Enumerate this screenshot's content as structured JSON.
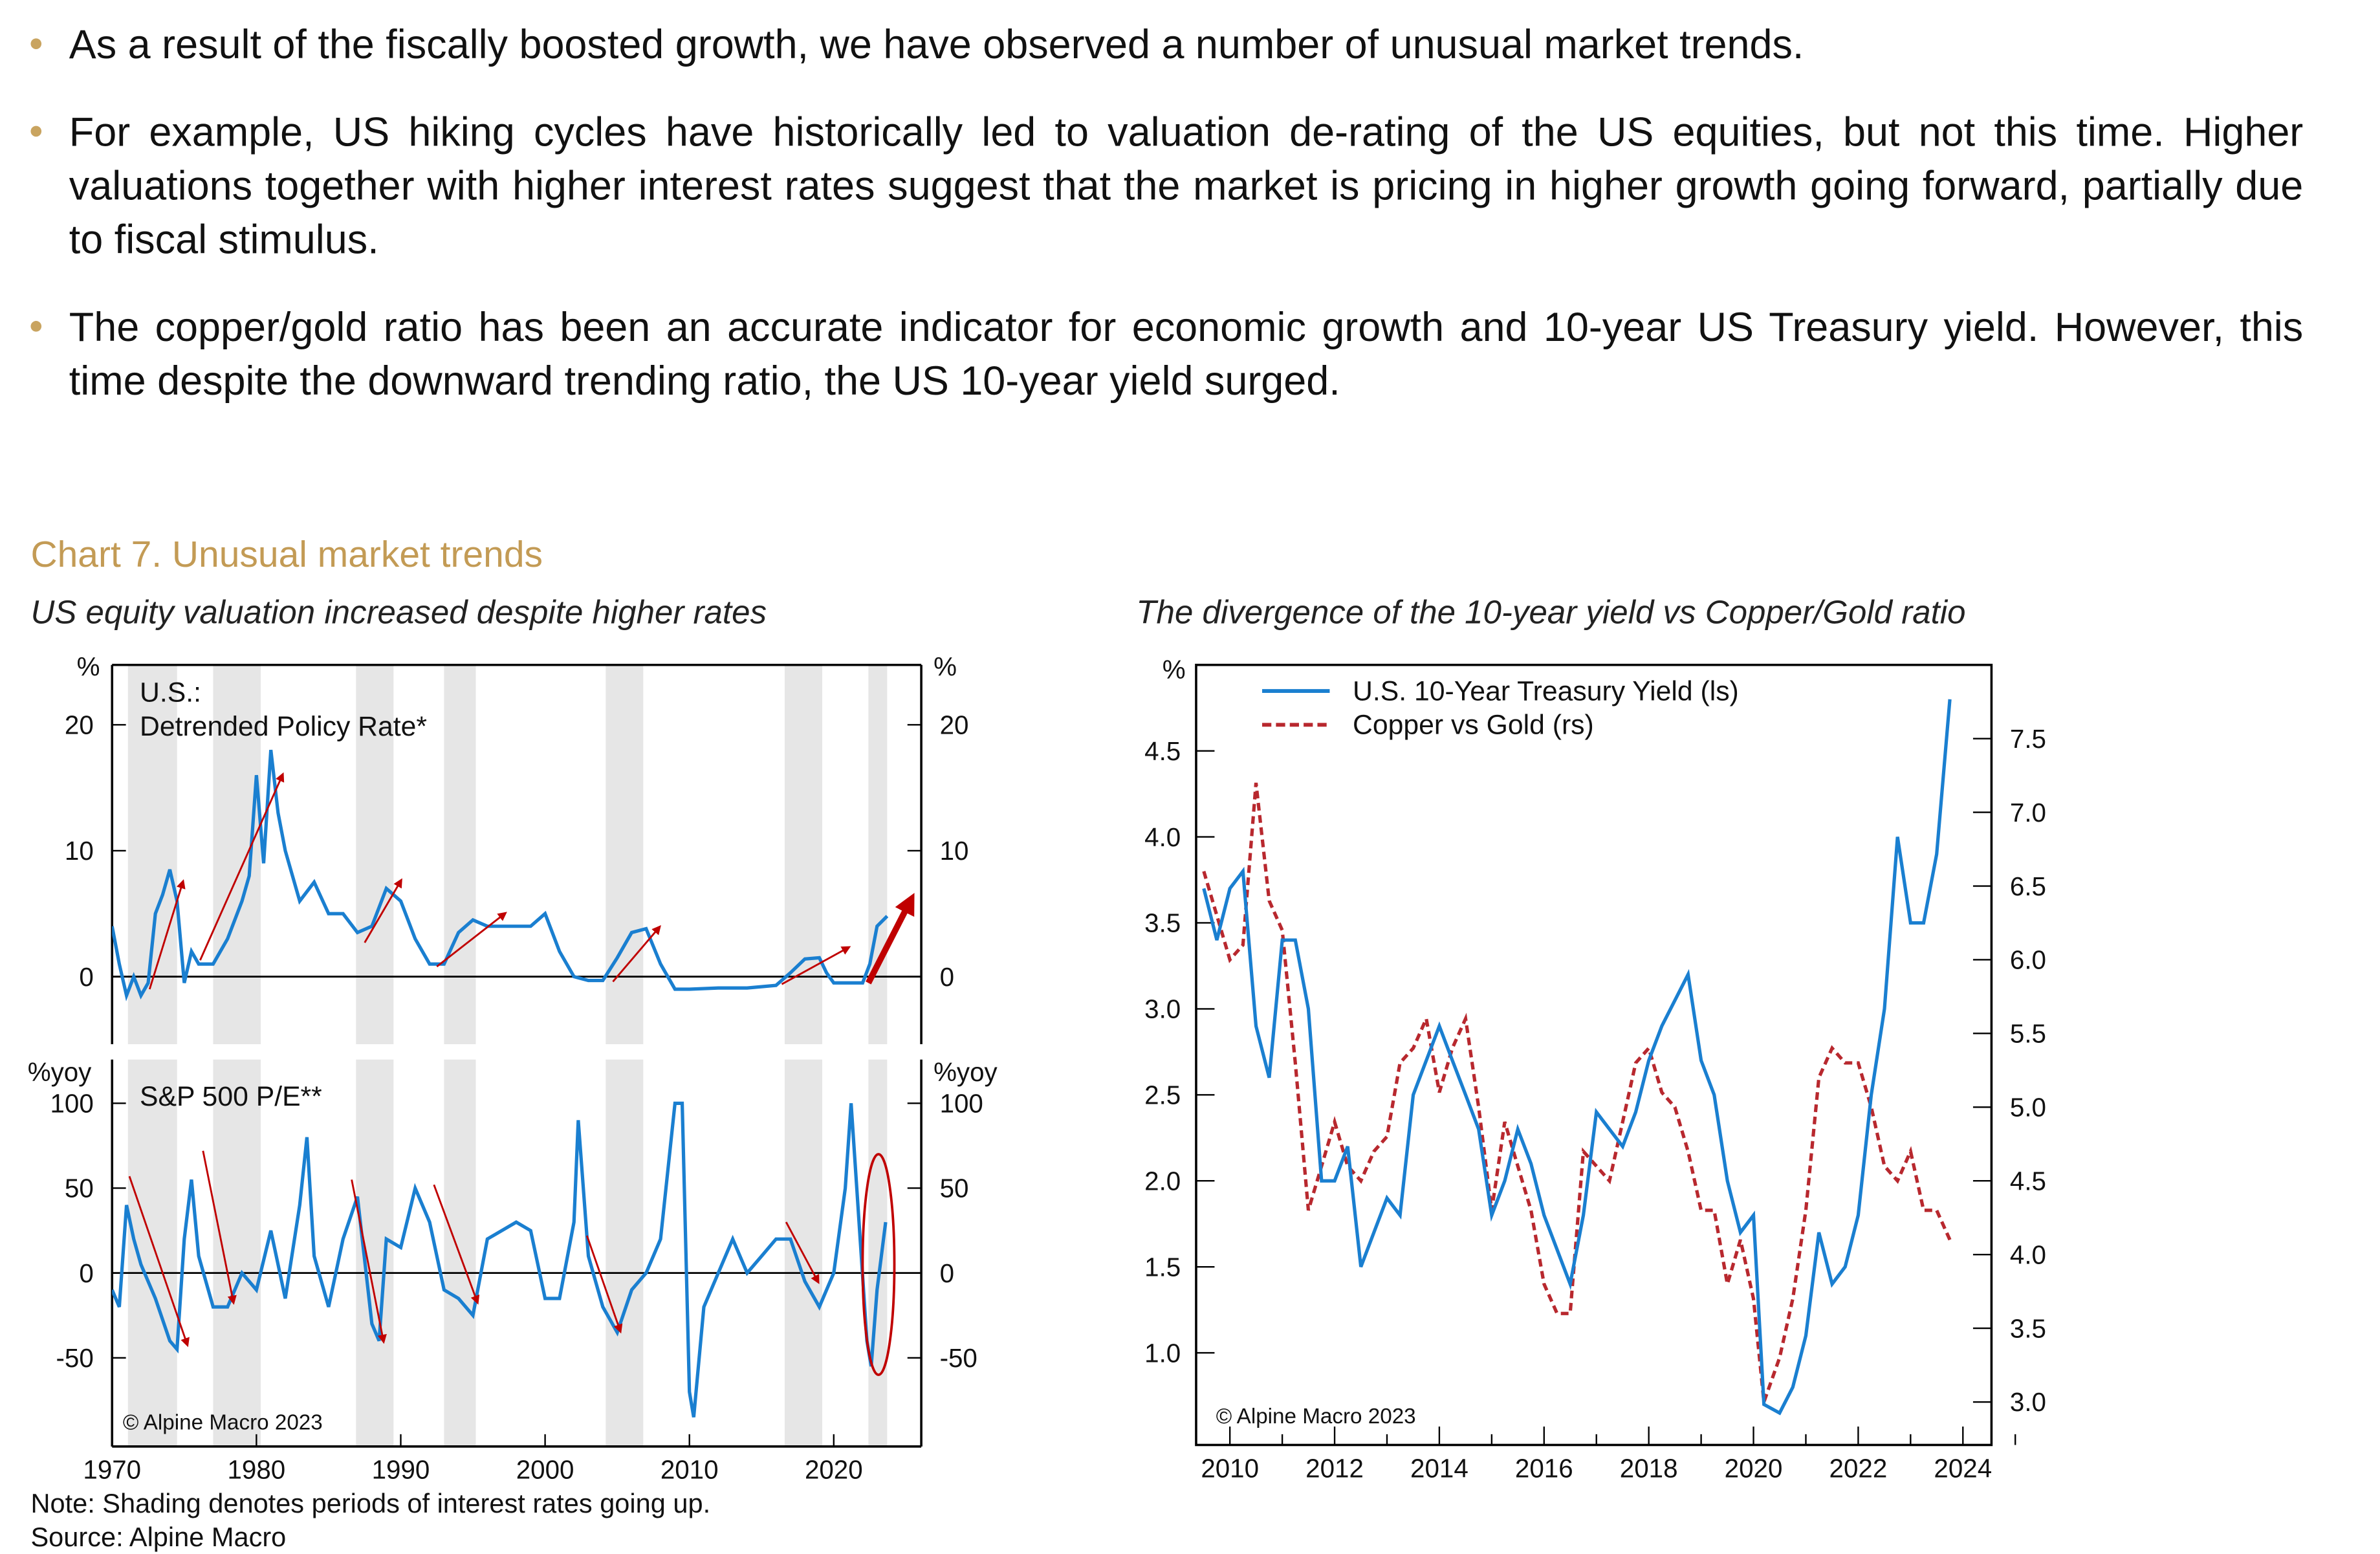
{
  "bullets": [
    "As a result of the fiscally boosted growth, we have observed a number of unusual market trends.",
    "For example, US hiking cycles have historically led to valuation de-rating of the US equities, but not this time. Higher valuations together with higher interest rates suggest that the market is pricing in higher growth going forward, partially due to fiscal stimulus.",
    "The copper/gold ratio has been an accurate indicator for economic growth and 10-year US Treasury yield. However, this time despite the downward trending ratio, the US 10-year yield surged."
  ],
  "chart_title": "Chart 7. Unusual market trends",
  "note": "Note: Shading denotes periods of interest rates going up.",
  "source": "Source: Alpine Macro",
  "colors": {
    "accent": "#c39b55",
    "blue_line": "#1a7fd0",
    "red": "#c00000",
    "dashed_red": "#b8282e",
    "shading": "#e6e6e6"
  },
  "chart_data": [
    {
      "type": "line",
      "subtitle": "US equity valuation increased despite higher rates",
      "copyright": "© Alpine Macro 2023",
      "x_ticks": [
        1970,
        1980,
        1990,
        2000,
        2010,
        2020
      ],
      "xlim": [
        1970,
        2026
      ],
      "shaded_periods": [
        [
          1971.1,
          1974.5
        ],
        [
          1977.0,
          1980.3
        ],
        [
          1986.9,
          1989.5
        ],
        [
          1993.0,
          1995.2
        ],
        [
          2004.2,
          2006.8
        ],
        [
          2016.6,
          2019.2
        ],
        [
          2022.4,
          2023.7
        ]
      ],
      "panels": [
        {
          "label_line1": "U.S.:",
          "label_line2": "Detrended Policy Rate*",
          "unit": "%",
          "y_ticks": [
            0,
            10,
            20
          ],
          "ylim": [
            -5.4,
            24.7
          ],
          "x": [
            1970,
            1970.5,
            1971,
            1971.5,
            1972,
            1972.5,
            1973,
            1973.5,
            1974,
            1974.5,
            1975,
            1975.5,
            1976,
            1977,
            1978,
            1979,
            1979.5,
            1980,
            1980.5,
            1981,
            1981.5,
            1982,
            1982.5,
            1983,
            1984,
            1985,
            1986,
            1987,
            1988,
            1989,
            1990,
            1991,
            1992,
            1993,
            1994,
            1995,
            1996,
            1997,
            1998,
            1999,
            2000,
            2001,
            2002,
            2003,
            2004,
            2005,
            2006,
            2007,
            2008,
            2009,
            2010,
            2012,
            2014,
            2016,
            2017,
            2018,
            2019,
            2019.5,
            2020,
            2021,
            2022,
            2022.5,
            2023,
            2023.7
          ],
          "values": [
            4,
            1,
            -1.5,
            0,
            -1.5,
            -0.5,
            5,
            6.5,
            8.5,
            6,
            -0.5,
            2,
            1,
            1,
            3,
            6,
            8,
            16,
            9,
            18,
            13,
            10,
            8,
            6,
            7.5,
            5,
            5,
            3.5,
            4,
            7,
            6,
            3,
            1,
            1,
            3.5,
            4.5,
            4,
            4,
            4,
            4,
            5,
            2,
            0,
            -0.3,
            -0.3,
            1.5,
            3.5,
            3.8,
            1,
            -1,
            -1,
            -0.9,
            -0.9,
            -0.7,
            0.3,
            1.4,
            1.5,
            0.3,
            -0.5,
            -0.5,
            -0.5,
            1,
            4,
            4.8
          ],
          "arrows": [
            [
              1972.6,
              -1,
              1974.9,
              7.5
            ],
            [
              1976.1,
              1.3,
              1981.8,
              16
            ],
            [
              1987.5,
              2.7,
              1990,
              7.6
            ],
            [
              1992.5,
              0.8,
              1997.2,
              5
            ],
            [
              2004.7,
              -0.4,
              2007.9,
              3.9
            ],
            [
              2016.4,
              -0.6,
              2021,
              2.3
            ],
            [
              2022.4,
              -0.5,
              2025.3,
              6
            ]
          ]
        },
        {
          "label_line1": "S&P 500 P/E**",
          "label_line2": "",
          "unit": "%yoy",
          "y_ticks": [
            -50,
            0,
            50,
            100
          ],
          "ylim": [
            -102,
            125
          ],
          "x": [
            1970,
            1970.5,
            1971,
            1971.5,
            1972,
            1973,
            1974,
            1974.5,
            1975,
            1975.5,
            1976,
            1977,
            1978,
            1979,
            1980,
            1981,
            1982,
            1983,
            1983.5,
            1984,
            1985,
            1986,
            1987,
            1988,
            1988.5,
            1989,
            1990,
            1991,
            1992,
            1993,
            1994,
            1995,
            1996,
            1997,
            1998,
            1999,
            2000,
            2001,
            2002,
            2002.3,
            2003,
            2004,
            2005,
            2006,
            2007,
            2008,
            2009,
            2009.5,
            2010,
            2010.3,
            2011,
            2012,
            2013,
            2014,
            2015,
            2016,
            2017,
            2018,
            2019,
            2020,
            2020.8,
            2021.2,
            2021.6,
            2022.3,
            2022.6,
            2023,
            2023.6
          ],
          "values": [
            -10,
            -20,
            40,
            20,
            5,
            -15,
            -40,
            -45,
            20,
            55,
            10,
            -20,
            -20,
            0,
            -10,
            25,
            -15,
            40,
            80,
            10,
            -20,
            20,
            45,
            -30,
            -40,
            20,
            15,
            50,
            30,
            -10,
            -15,
            -25,
            20,
            25,
            30,
            25,
            -15,
            -15,
            30,
            90,
            10,
            -20,
            -35,
            -10,
            0,
            20,
            100,
            100,
            -70,
            -85,
            -20,
            0,
            20,
            0,
            10,
            20,
            20,
            -5,
            -20,
            0,
            50,
            100,
            50,
            -40,
            -55,
            -10,
            30
          ],
          "arrows": [
            [
              1971.2,
              57,
              1975.2,
              -42
            ],
            [
              1976.3,
              72,
              1978.4,
              -17
            ],
            [
              1986.6,
              55,
              1988.8,
              -40
            ],
            [
              1992.3,
              52,
              1995.3,
              -17
            ],
            [
              2002.9,
              22,
              2005.2,
              -34
            ],
            [
              2016.7,
              30,
              2018.9,
              -5
            ]
          ],
          "highlight_ellipse": {
            "x": 2023.1,
            "y": 5,
            "rx_years": 1.1,
            "ry": 65
          }
        }
      ]
    },
    {
      "type": "line",
      "subtitle": "The divergence of the 10-year yield vs Copper/Gold ratio",
      "copyright": "© Alpine Macro 2023",
      "left_unit": "%",
      "x_ticks": [
        2010,
        2012,
        2014,
        2016,
        2018,
        2020,
        2022,
        2024
      ],
      "xlim": [
        2009.4,
        2024.5
      ],
      "left_ticks": [
        "1.0",
        "1.5",
        "2.0",
        "2.5",
        "3.0",
        "3.5",
        "4.0",
        "4.5"
      ],
      "left_ylim": [
        0.47,
        5.0
      ],
      "right_ticks": [
        "3.0",
        "3.5",
        "4.0",
        "4.5",
        "5.0",
        "5.5",
        "6.0",
        "6.5",
        "7.0",
        "7.5"
      ],
      "right_ylim": [
        2.71,
        8.0
      ],
      "legend_position": "top-left",
      "series": [
        {
          "name": "U.S. 10-Year Treasury Yield (ls)",
          "axis": "left",
          "style": "solid",
          "x": [
            2009.5,
            2009.75,
            2010,
            2010.25,
            2010.5,
            2010.75,
            2011,
            2011.25,
            2011.5,
            2011.75,
            2012,
            2012.25,
            2012.5,
            2012.75,
            2013,
            2013.25,
            2013.5,
            2013.75,
            2014,
            2014.25,
            2014.5,
            2014.75,
            2015,
            2015.25,
            2015.5,
            2015.75,
            2016,
            2016.5,
            2016.75,
            2017,
            2017.25,
            2017.5,
            2017.75,
            2018,
            2018.25,
            2018.75,
            2019,
            2019.25,
            2019.5,
            2019.75,
            2020,
            2020.2,
            2020.5,
            2020.75,
            2021,
            2021.25,
            2021.5,
            2021.75,
            2022,
            2022.25,
            2022.5,
            2022.75,
            2023,
            2023.25,
            2023.5,
            2023.75
          ],
          "values": [
            3.7,
            3.4,
            3.7,
            3.8,
            2.9,
            2.6,
            3.4,
            3.4,
            3.0,
            2.0,
            2.0,
            2.2,
            1.5,
            1.7,
            1.9,
            1.8,
            2.5,
            2.7,
            2.9,
            2.7,
            2.5,
            2.3,
            1.8,
            2.0,
            2.3,
            2.1,
            1.8,
            1.4,
            1.8,
            2.4,
            2.3,
            2.2,
            2.4,
            2.7,
            2.9,
            3.2,
            2.7,
            2.5,
            2.0,
            1.7,
            1.8,
            0.7,
            0.65,
            0.8,
            1.1,
            1.7,
            1.4,
            1.5,
            1.8,
            2.5,
            3.0,
            4.0,
            3.5,
            3.5,
            3.9,
            4.8
          ]
        },
        {
          "name": "Copper vs Gold (rs)",
          "axis": "right",
          "style": "dashed",
          "x": [
            2009.5,
            2009.75,
            2010,
            2010.25,
            2010.5,
            2010.75,
            2011,
            2011.25,
            2011.5,
            2011.75,
            2012,
            2012.25,
            2012.5,
            2012.75,
            2013,
            2013.25,
            2013.5,
            2013.75,
            2014,
            2014.25,
            2014.5,
            2014.75,
            2015,
            2015.25,
            2015.5,
            2015.75,
            2016,
            2016.25,
            2016.5,
            2016.75,
            2017,
            2017.25,
            2017.5,
            2017.75,
            2018,
            2018.25,
            2018.5,
            2018.75,
            2019,
            2019.25,
            2019.5,
            2019.75,
            2020,
            2020.2,
            2020.5,
            2020.75,
            2021,
            2021.25,
            2021.5,
            2021.75,
            2022,
            2022.25,
            2022.5,
            2022.75,
            2023,
            2023.25,
            2023.5,
            2023.75
          ],
          "values": [
            6.6,
            6.3,
            6.0,
            6.1,
            7.2,
            6.4,
            6.2,
            5.3,
            4.3,
            4.6,
            4.9,
            4.6,
            4.5,
            4.7,
            4.8,
            5.3,
            5.4,
            5.6,
            5.1,
            5.4,
            5.6,
            5.0,
            4.3,
            4.9,
            4.6,
            4.3,
            3.8,
            3.6,
            3.6,
            4.7,
            4.6,
            4.5,
            4.9,
            5.3,
            5.4,
            5.1,
            5.0,
            4.7,
            4.3,
            4.3,
            3.8,
            4.1,
            3.7,
            3.0,
            3.3,
            3.7,
            4.3,
            5.2,
            5.4,
            5.3,
            5.3,
            5.0,
            4.6,
            4.5,
            4.7,
            4.3,
            4.3,
            4.1
          ]
        }
      ]
    }
  ]
}
